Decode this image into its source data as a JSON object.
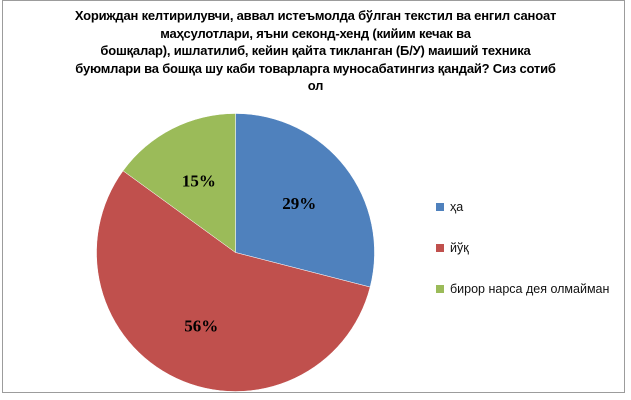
{
  "chart": {
    "title_lines": [
      "Хориждан келтирилувчи, аввал истеъмолда бўлган текстил ва енгил саноат",
      "маҳсулотлари, яъни секонд-хенд (кийим кечак ва",
      "бошқалар), ишлатилиб, кейин қайта тикланган (Б/У) маиший техника",
      "буюмлари ва бошқа шу каби товарларга муносабатингиз қандай? Сиз сотиб",
      "ол"
    ]
  },
  "chart_data": {
    "type": "pie",
    "title": "Хориждан келтирилувчи, аввал истеъмолда бўлган текстил ва енгил саноат маҳсулотлари, яъни секонд-хенд (кийим кечак ва бошқалар), ишлатилиб, кейин қайта тикланган (Б/У) маиший техника буюмлари ва бошқа шу каби товарларга муносабатингиз қандай? Сиз сотиб ол",
    "slices": [
      {
        "label": "ҳа",
        "value": 29,
        "display": "29%",
        "color": "#4F81BD"
      },
      {
        "label": "йўқ",
        "value": 56,
        "display": "56%",
        "color": "#C0504D"
      },
      {
        "label": "бирор нарса дея олмайман",
        "value": 15,
        "display": "15%",
        "color": "#9BBB59"
      }
    ],
    "value_format": "percent",
    "start_angle_deg": 0,
    "direction": "clockwise",
    "legend_position": "right",
    "data_labels": "inside",
    "colors": {
      "frame_border": "#9C9C9C",
      "background": "#FFFFFF",
      "label_text": "#000000"
    }
  }
}
